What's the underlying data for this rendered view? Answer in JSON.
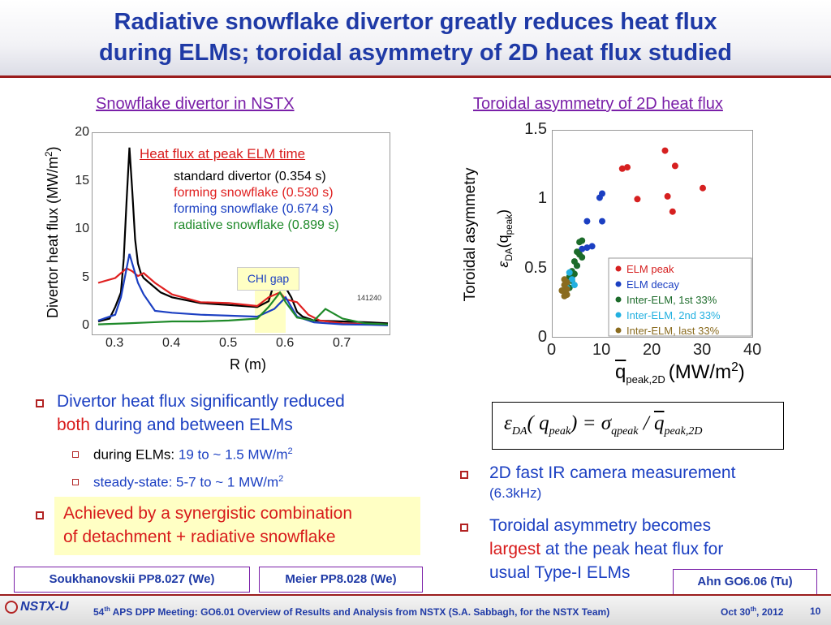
{
  "title": {
    "line1": "Radiative snowflake divertor greatly reduces heat flux",
    "line2": "during ELMs; toroidal asymmetry of 2D heat flux studied"
  },
  "left_panel": {
    "heading": "Snowflake divertor in NSTX",
    "ylabel": "Divertor heat flux (MW/m",
    "ylabel_sup": "2",
    "ylabel_close": ")",
    "xlabel": "R (m)",
    "chi_gap": "CHI gap",
    "shot_id": "141240",
    "legend_title": "Heat flux at peak ELM time"
  },
  "right_panel": {
    "heading": "Toroidal asymmetry of 2D heat flux",
    "ylabel_line1": "Toroidal asymmetry",
    "ylabel_eps": "ε",
    "ylabel_eps_sub": "DA",
    "ylabel_q": "(q",
    "ylabel_q_sub": "peak",
    "ylabel_close": ")",
    "xlabel_q": "q",
    "xlabel_sub": "peak,2D",
    "xlabel_units": "(MW/m",
    "xlabel_sup": "2",
    "xlabel_close": ")"
  },
  "formula": {
    "eps": "ε",
    "eps_sub": "DA",
    "open": "( q",
    "q_sub": "peak",
    "mid": ") = σ",
    "sigma_sub": "qpeak",
    "slash": "/",
    "qbar": "q",
    "qbar_sub": "peak,2D"
  },
  "left_bullets": {
    "b1_a": "Divertor heat flux significantly reduced",
    "b1_both": "both",
    "b1_b": " during and between ELMs",
    "s1_a": "during ELMs: ",
    "s1_b": "19 to ~ 1.5 MW/m",
    "s1_sup": "2",
    "s2_a": "steady-state: 5-7 to ~ 1 MW/m",
    "s2_sup": "2",
    "b2_line1": "Achieved by a synergistic combination",
    "b2_line2": "of detachment + radiative snowflake"
  },
  "right_bullets": {
    "b1_a": "2D fast IR camera measurement",
    "b1_b": "(6.3kHz)",
    "b2_a": "Toroidal asymmetry becomes",
    "b2_largest": "largest",
    "b2_b": " at the peak heat flux for",
    "b2_c": "usual Type-I ELMs"
  },
  "refs": {
    "r1": "Soukhanovskii PP8.027 (We)",
    "r2": "Meier PP8.028 (We)",
    "r3": "Ahn GO6.06 (Tu)"
  },
  "footer": {
    "logo": "NSTX-U",
    "meeting_pre": "54",
    "meeting_sup": "th",
    "meeting_post": " APS DPP Meeting: GO6.01 Overview of Results and Analysis from NSTX (S.A. Sabbagh, for the NSTX Team)",
    "date_pre": "Oct 30",
    "date_sup": "th",
    "date_post": ", 2012",
    "page": "10"
  },
  "chart_data": [
    {
      "type": "line",
      "xlim": [
        0.26,
        0.78
      ],
      "ylim": [
        0,
        20
      ],
      "xticks": [
        "0.3",
        "0.4",
        "0.5",
        "0.6",
        "0.7"
      ],
      "yticks": [
        "0",
        "5",
        "10",
        "15",
        "20"
      ],
      "grid": false,
      "legend_position": "top-right",
      "series": [
        {
          "name": "standard divertor (0.354 s)",
          "color": "#000000",
          "x": [
            0.27,
            0.29,
            0.3,
            0.31,
            0.315,
            0.32,
            0.325,
            0.33,
            0.335,
            0.34,
            0.345,
            0.35,
            0.36,
            0.38,
            0.4,
            0.45,
            0.5,
            0.55,
            0.57,
            0.58,
            0.6,
            0.61,
            0.62,
            0.63,
            0.65,
            0.7,
            0.75,
            0.78
          ],
          "y": [
            0.5,
            0.8,
            2,
            3.5,
            7,
            13,
            18.5,
            14,
            9,
            6.5,
            5.5,
            5,
            4.5,
            3.5,
            3,
            2.4,
            2.2,
            2,
            2.6,
            4.5,
            4,
            3,
            1.5,
            1,
            0.6,
            0.5,
            0.4,
            0.3
          ]
        },
        {
          "name": "forming snowflake (0.530 s)",
          "color": "#e02020",
          "x": [
            0.27,
            0.3,
            0.31,
            0.32,
            0.33,
            0.34,
            0.35,
            0.37,
            0.4,
            0.45,
            0.5,
            0.55,
            0.57,
            0.59,
            0.6,
            0.62,
            0.64,
            0.66,
            0.7,
            0.75,
            0.78
          ],
          "y": [
            4.5,
            5,
            5.5,
            6,
            5.7,
            5.2,
            5.5,
            4.5,
            3.3,
            2.5,
            2.4,
            2.1,
            3,
            3.5,
            2.8,
            2.5,
            1.2,
            0.6,
            0.3,
            0.2,
            0.2
          ]
        },
        {
          "name": "forming snowflake (0.674 s)",
          "color": "#1b3fc2",
          "x": [
            0.27,
            0.3,
            0.31,
            0.32,
            0.325,
            0.33,
            0.34,
            0.35,
            0.37,
            0.4,
            0.45,
            0.5,
            0.55,
            0.58,
            0.6,
            0.62,
            0.65,
            0.7,
            0.75,
            0.78
          ],
          "y": [
            0.6,
            1.2,
            3,
            6,
            7.5,
            6.5,
            4.5,
            3.3,
            1.6,
            1.4,
            1.2,
            1.1,
            1,
            1.8,
            3,
            1,
            0.4,
            0.2,
            0.15,
            0.1
          ]
        },
        {
          "name": "radiative snowflake (0.899 s)",
          "color": "#1f8a2a",
          "x": [
            0.27,
            0.32,
            0.36,
            0.4,
            0.45,
            0.5,
            0.55,
            0.57,
            0.59,
            0.6,
            0.62,
            0.65,
            0.67,
            0.7,
            0.74,
            0.78
          ],
          "y": [
            0.2,
            0.3,
            0.4,
            0.5,
            0.5,
            0.6,
            0.8,
            2,
            3.5,
            2.5,
            0.9,
            0.6,
            1.8,
            0.8,
            0.3,
            0.2
          ]
        }
      ]
    },
    {
      "type": "scatter",
      "xlim": [
        0,
        40
      ],
      "ylim": [
        0,
        1.5
      ],
      "xticks": [
        "0",
        "10",
        "20",
        "30",
        "40"
      ],
      "yticks": [
        "0",
        "0.5",
        "1",
        "1.5"
      ],
      "grid": false,
      "legend_position": "bottom-right",
      "series": [
        {
          "name": "ELM peak",
          "color": "#d62020",
          "points": [
            [
              14,
              1.22
            ],
            [
              15,
              1.23
            ],
            [
              17,
              1.0
            ],
            [
              22.5,
              1.35
            ],
            [
              23,
              1.02
            ],
            [
              24.5,
              1.24
            ],
            [
              24,
              0.91
            ],
            [
              30,
              1.08
            ]
          ]
        },
        {
          "name": "ELM decay",
          "color": "#1b3fc2",
          "points": [
            [
              9.5,
              1.01
            ],
            [
              10,
              1.04
            ],
            [
              7,
              0.84
            ],
            [
              10,
              0.84
            ],
            [
              7,
              0.65
            ],
            [
              8,
              0.66
            ],
            [
              6,
              0.64
            ],
            [
              5,
              0.52
            ],
            [
              4,
              0.44
            ]
          ]
        },
        {
          "name": "Inter-ELM, 1st 33%",
          "color": "#1c6b2a",
          "points": [
            [
              5.5,
              0.69
            ],
            [
              6,
              0.7
            ],
            [
              5,
              0.62
            ],
            [
              5.5,
              0.6
            ],
            [
              6,
              0.58
            ],
            [
              4.5,
              0.55
            ],
            [
              5,
              0.52
            ],
            [
              4,
              0.48
            ],
            [
              4.5,
              0.46
            ],
            [
              3.5,
              0.44
            ],
            [
              4,
              0.41
            ],
            [
              3,
              0.38
            ],
            [
              3.5,
              0.36
            ]
          ]
        },
        {
          "name": "Inter-ELM, 2nd 33%",
          "color": "#22b0e0",
          "points": [
            [
              3.5,
              0.47
            ],
            [
              4,
              0.42
            ],
            [
              3,
              0.4
            ],
            [
              4.5,
              0.38
            ],
            [
              3,
              0.36
            ]
          ]
        },
        {
          "name": "Inter-ELM, last 33%",
          "color": "#8a6b1e",
          "points": [
            [
              2.5,
              0.42
            ],
            [
              3,
              0.4
            ],
            [
              2.5,
              0.38
            ],
            [
              3,
              0.35
            ],
            [
              2.5,
              0.33
            ],
            [
              2,
              0.34
            ],
            [
              3,
              0.31
            ],
            [
              2.5,
              0.3
            ]
          ]
        }
      ]
    }
  ]
}
